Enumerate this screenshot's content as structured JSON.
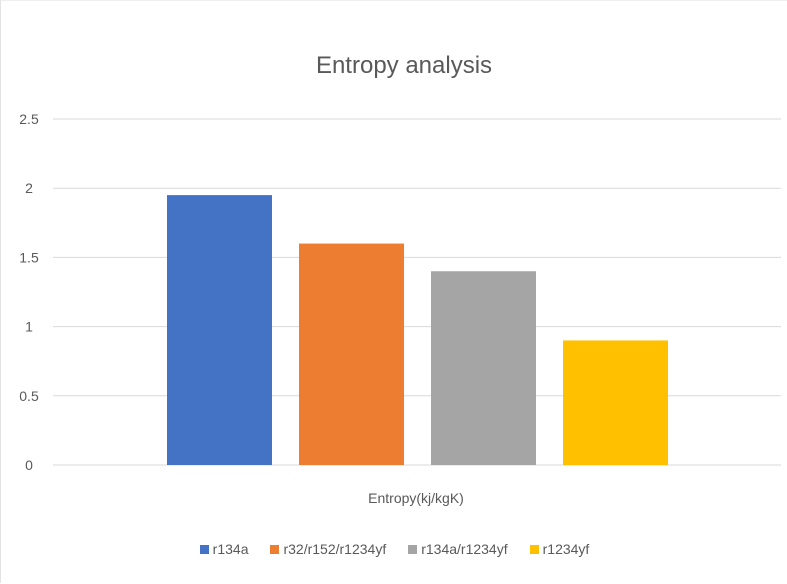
{
  "chart_data": {
    "type": "bar",
    "title": "Entropy analysis",
    "xlabel": "Entropy(kj/kgK)",
    "ylabel": "",
    "ylim": [
      0,
      2.5
    ],
    "yticks": [
      "0",
      "0.5",
      "1",
      "1.5",
      "2",
      "2.5"
    ],
    "grid": true,
    "legend_position": "bottom",
    "series": [
      {
        "name": "r134a",
        "value": 1.95,
        "color": "#4472C4"
      },
      {
        "name": "r32/r152/r1234yf",
        "value": 1.6,
        "color": "#ED7D31"
      },
      {
        "name": "r134a/r1234yf",
        "value": 1.4,
        "color": "#A5A5A5"
      },
      {
        "name": "r1234yf",
        "value": 0.9,
        "color": "#FFC000"
      }
    ]
  }
}
